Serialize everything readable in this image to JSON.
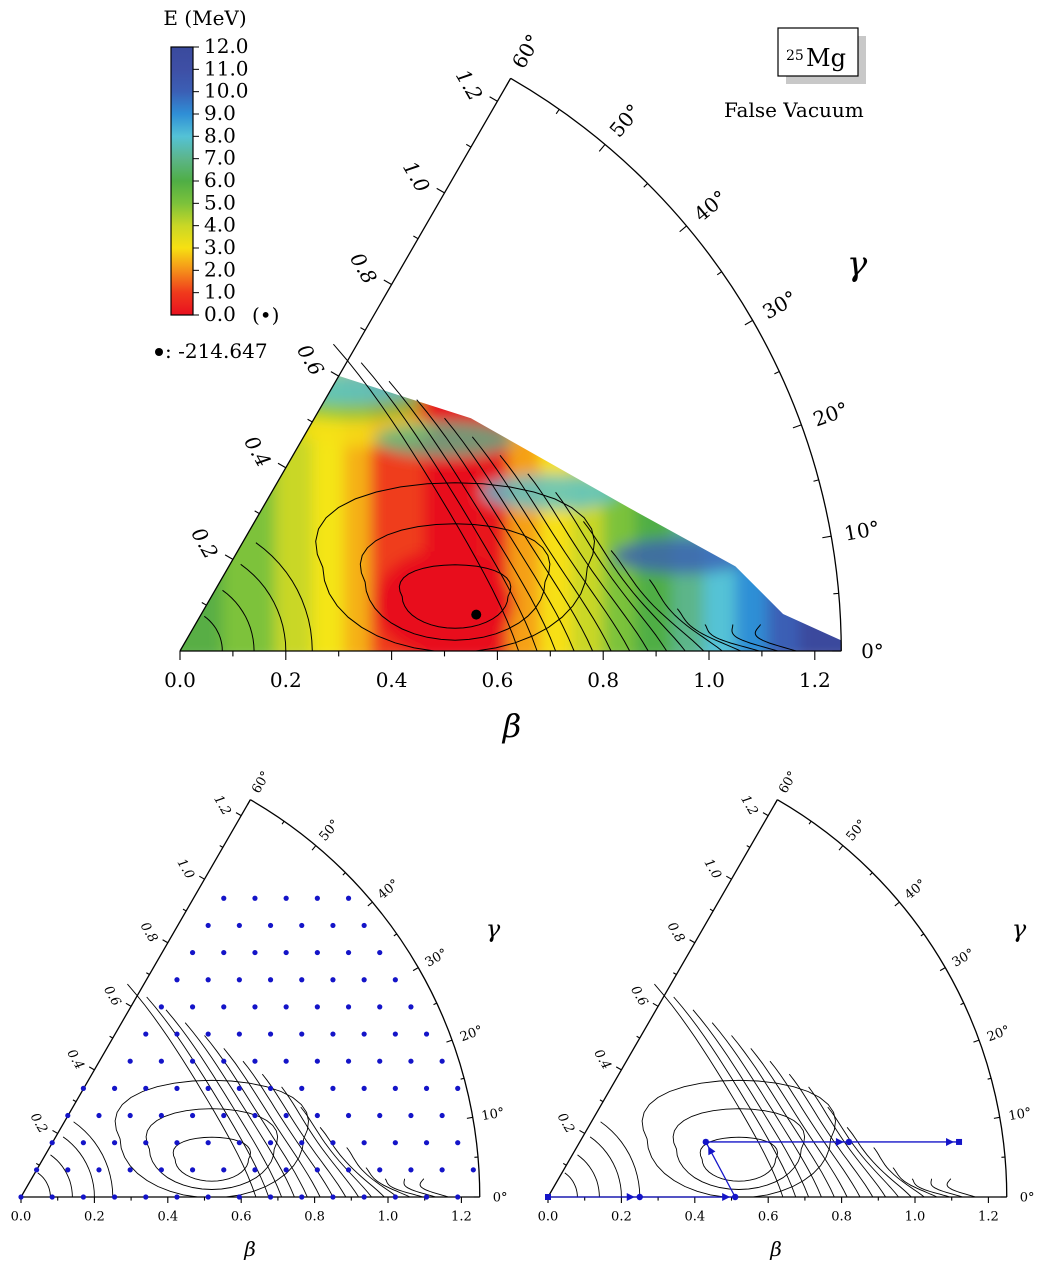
{
  "chart_data": [
    {
      "type": "heatmap",
      "projection": "polar-sector",
      "xlabel": "β",
      "ylabel": "γ",
      "xlim": [
        0,
        1.25
      ],
      "gamma_range_deg": [
        0,
        60
      ],
      "x_ticks": [
        "0.0",
        "0.2",
        "0.4",
        "0.6",
        "0.8",
        "1.0",
        "1.2"
      ],
      "radial_ticks": [
        "0.2",
        "0.4",
        "0.6",
        "0.8",
        "1.0",
        "1.2"
      ],
      "gamma_ticks": [
        "0°",
        "10°",
        "20°",
        "30°",
        "40°",
        "50°",
        "60°"
      ],
      "colorbar": {
        "title": "E (MeV)",
        "ticks": [
          "0.0",
          "1.0",
          "2.0",
          "3.0",
          "4.0",
          "5.0",
          "6.0",
          "7.0",
          "8.0",
          "9.0",
          "10.0",
          "11.0",
          "12.0"
        ],
        "range": [
          0,
          12
        ],
        "min_marker_label": "(•)",
        "colors": [
          "#e8101f",
          "#f03a1c",
          "#f5901a",
          "#f7e012",
          "#c9d726",
          "#7cc23b",
          "#4fae45",
          "#5cb58a",
          "#54c2d6",
          "#2f8fd6",
          "#3b5fb5",
          "#3e4fa5",
          "#3a4a9d"
        ]
      },
      "minimum": {
        "beta": 0.56,
        "gamma_deg": 7,
        "label": ": -214.647"
      },
      "nucleus": {
        "mass_number": "25",
        "symbol": "Mg"
      },
      "annotation": "False Vacuum"
    },
    {
      "type": "scatter",
      "projection": "polar-sector",
      "xlabel": "β",
      "ylabel": "γ",
      "xlim": [
        0,
        1.25
      ],
      "x_ticks": [
        "0.0",
        "0.2",
        "0.4",
        "0.6",
        "0.8",
        "1.0",
        "1.2"
      ],
      "radial_ticks": [
        "0.2",
        "0.4",
        "0.6",
        "0.8",
        "1.0",
        "1.2"
      ],
      "gamma_ticks": [
        "0°",
        "10°",
        "20°",
        "30°",
        "40°",
        "50°",
        "60°"
      ],
      "grid_points": {
        "x_spacing": 0.085,
        "y_spacing": 0.074,
        "color": "#1414c8"
      }
    },
    {
      "type": "line",
      "projection": "polar-sector",
      "xlabel": "β",
      "ylabel": "γ",
      "xlim": [
        0,
        1.25
      ],
      "x_ticks": [
        "0.0",
        "0.2",
        "0.4",
        "0.6",
        "0.8",
        "1.0",
        "1.2"
      ],
      "radial_ticks": [
        "0.2",
        "0.4",
        "0.6",
        "0.8",
        "1.0",
        "1.2"
      ],
      "gamma_ticks": [
        "0°",
        "10°",
        "20°",
        "30°",
        "40°",
        "50°",
        "60°"
      ],
      "path": {
        "color": "#1414c8",
        "points": [
          {
            "x": 0.0,
            "y": 0.0,
            "marker": "square"
          },
          {
            "x": 0.25,
            "y": 0.0,
            "marker": "circle"
          },
          {
            "x": 0.51,
            "y": 0.0,
            "marker": "circle"
          },
          {
            "x": 0.43,
            "y": 0.15,
            "marker": "circle"
          },
          {
            "x": 0.82,
            "y": 0.15,
            "marker": "circle"
          },
          {
            "x": 1.12,
            "y": 0.15,
            "marker": "square"
          }
        ]
      }
    }
  ]
}
